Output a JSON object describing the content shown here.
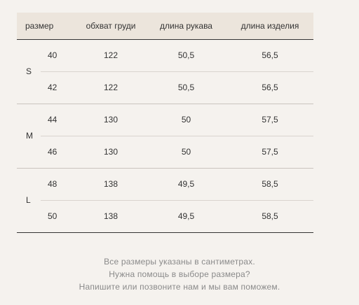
{
  "table": {
    "headers": [
      "размер",
      "обхват груди",
      "длина рукава",
      "длина изделия"
    ],
    "groups": [
      {
        "label": "S",
        "rows": [
          {
            "size": "40",
            "chest": "122",
            "sleeve": "50,5",
            "length": "56,5"
          },
          {
            "size": "42",
            "chest": "122",
            "sleeve": "50,5",
            "length": "56,5"
          }
        ]
      },
      {
        "label": "M",
        "rows": [
          {
            "size": "44",
            "chest": "130",
            "sleeve": "50",
            "length": "57,5"
          },
          {
            "size": "46",
            "chest": "130",
            "sleeve": "50",
            "length": "57,5"
          }
        ]
      },
      {
        "label": "L",
        "rows": [
          {
            "size": "48",
            "chest": "138",
            "sleeve": "49,5",
            "length": "58,5"
          },
          {
            "size": "50",
            "chest": "138",
            "sleeve": "49,5",
            "length": "58,5"
          }
        ]
      }
    ]
  },
  "footnote": {
    "line1": "Все размеры указаны в сантиметрах.",
    "line2": "Нужна помощь в выборе размера?",
    "line3": "Напишите или позвоните нам и мы вам поможем."
  }
}
